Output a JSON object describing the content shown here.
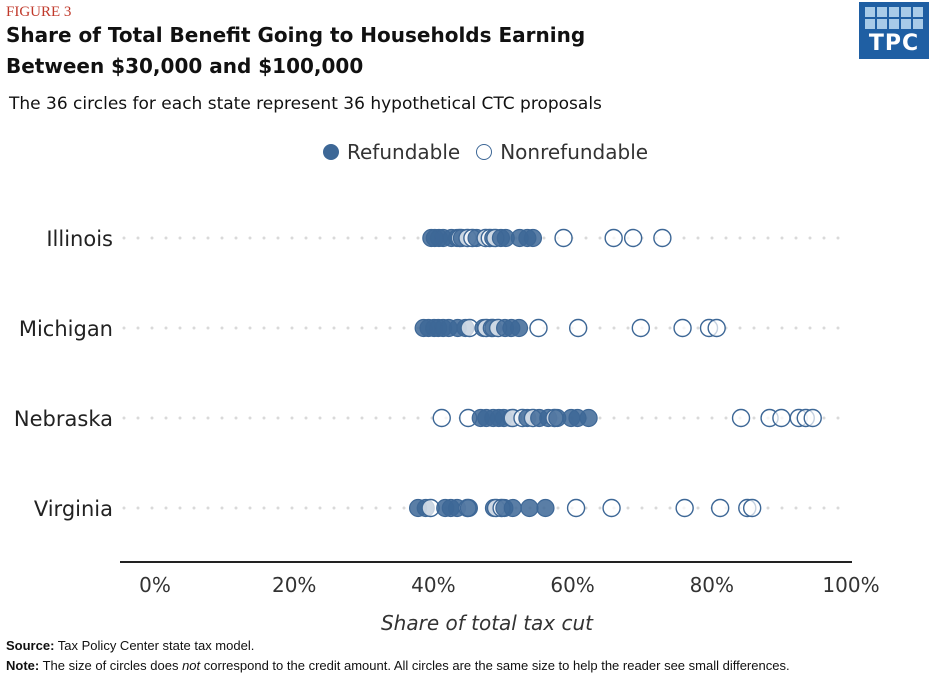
{
  "figure_label": "FIGURE 3",
  "logo_text": "TPC",
  "legend": {
    "refundable": "Refundable",
    "nonrefundable": "Nonrefundable"
  },
  "footer": {
    "source_label": "Source:",
    "source_text": "Tax Policy Center state tax model.",
    "note_label": "Note:",
    "note_part1": "The size of circles does",
    "note_emph": "not",
    "note_part2": "correspond to the credit amount. All circles are the same size to help the reader see small differences."
  },
  "colors": {
    "refundable": "#3d6796",
    "nonrefundable_stroke": "#3d6796",
    "nonrefundable_fill": "#ffffff",
    "dots": "#d9d9d9",
    "axis": "#222222",
    "figure_label": "#c0392b",
    "logo": "#1f5fa3"
  },
  "chart_data": {
    "type": "scatter",
    "title": "Share of Total Benefit Going to Households Earning Between $30,000 and $100,000",
    "subtitle": "The 36 circles for each state represent 36 hypothetical CTC proposals",
    "xlabel": "Share of total tax cut",
    "xlim": [
      0,
      100
    ],
    "xticks": [
      "0%",
      "20%",
      "40%",
      "60%",
      "80%",
      "100%"
    ],
    "xtick_values": [
      0,
      20,
      40,
      60,
      80,
      100
    ],
    "categories": [
      "Illinois",
      "Michigan",
      "Nebraska",
      "Virginia"
    ],
    "legend_position": "top-center",
    "grid": false,
    "series": [
      {
        "name": "Refundable",
        "values": {
          "Illinois": [
            39.7,
            40.2,
            40.8,
            41.4,
            42.6,
            43.4,
            44.1,
            46.2,
            48.6,
            49.7,
            50.4,
            52.4,
            53.5,
            54.3
          ],
          "Michigan": [
            38.6,
            39.3,
            40.1,
            40.7,
            41.4,
            42.2,
            43.5,
            44.6,
            47.2,
            48.6,
            50.3,
            51.2,
            52.3
          ],
          "Nebraska": [
            46.8,
            47.6,
            48.6,
            49.4,
            50.1,
            51.2,
            53.5,
            55.2,
            56.5,
            57.8,
            59.8,
            60.7,
            62.3
          ],
          "Virginia": [
            37.8,
            38.9,
            41.7,
            42.5,
            43.4,
            45.1,
            48.7,
            50.2,
            51.4,
            53.8,
            56.1
          ]
        }
      },
      {
        "name": "Nonrefundable",
        "values": {
          "Illinois": [
            43.8,
            44.9,
            45.6,
            47.5,
            48.1,
            48.9,
            58.7,
            65.9,
            68.7,
            72.9
          ],
          "Michigan": [
            45.2,
            47.6,
            48.4,
            49.3,
            55.1,
            60.8,
            69.8,
            75.8,
            79.6,
            80.7
          ],
          "Nebraska": [
            41.2,
            45.0,
            51.4,
            52.8,
            54.3,
            57.4,
            84.2,
            88.3,
            90.0,
            92.5,
            93.5,
            94.5
          ],
          "Virginia": [
            39.6,
            44.9,
            49.0,
            49.8,
            60.5,
            65.6,
            76.1,
            81.2,
            85.1,
            85.8
          ]
        }
      }
    ]
  }
}
